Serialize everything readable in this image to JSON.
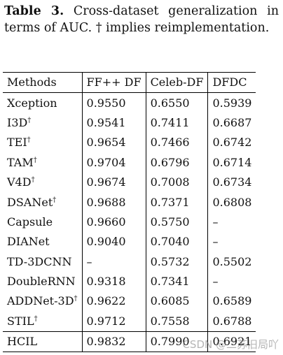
{
  "caption": {
    "label": "Table 3.",
    "text": "Cross-dataset generalization in terms of AUC. † implies reimplementation."
  },
  "table": {
    "headers": [
      "Methods",
      "FF++ DF",
      "Celeb-DF",
      "DFDC"
    ],
    "rows": [
      {
        "method": "Xception",
        "dagger": "",
        "ffdf": "0.9550",
        "celebdf": "0.6550",
        "dfdc": "0.5939"
      },
      {
        "method": "I3D",
        "dagger": "†",
        "ffdf": "0.9541",
        "celebdf": "0.7411",
        "dfdc": "0.6687"
      },
      {
        "method": "TEI",
        "dagger": "†",
        "ffdf": "0.9654",
        "celebdf": "0.7466",
        "dfdc": "0.6742"
      },
      {
        "method": "TAM",
        "dagger": "†",
        "ffdf": "0.9704",
        "celebdf": "0.6796",
        "dfdc": "0.6714"
      },
      {
        "method": "V4D",
        "dagger": "†",
        "ffdf": "0.9674",
        "celebdf": "0.7008",
        "dfdc": "0.6734"
      },
      {
        "method": "DSANet",
        "dagger": "†",
        "ffdf": "0.9688",
        "celebdf": "0.7371",
        "dfdc": "0.6808"
      },
      {
        "method": "Capsule",
        "dagger": "",
        "ffdf": "0.9660",
        "celebdf": "0.5750",
        "dfdc": "–"
      },
      {
        "method": "DIANet",
        "dagger": "",
        "ffdf": "0.9040",
        "celebdf": "0.7040",
        "dfdc": "–"
      },
      {
        "method": "TD-3DCNN",
        "dagger": "",
        "ffdf": "–",
        "celebdf": "0.5732",
        "dfdc": "0.5502"
      },
      {
        "method": "DoubleRNN",
        "dagger": "",
        "ffdf": "0.9318",
        "celebdf": "0.7341",
        "dfdc": "–"
      },
      {
        "method": "ADDNet-3D",
        "dagger": "†",
        "ffdf": "0.9622",
        "celebdf": "0.6085",
        "dfdc": "0.6589"
      },
      {
        "method": "STIL",
        "dagger": "†",
        "ffdf": "0.9712",
        "celebdf": "0.7558",
        "dfdc": "0.6788"
      },
      {
        "method": "HCIL",
        "dagger": "",
        "ffdf": "0.9832",
        "celebdf": "0.7990",
        "dfdc": "0.6921"
      }
    ]
  },
  "watermark": "CSDN @二苏旧局吖"
}
